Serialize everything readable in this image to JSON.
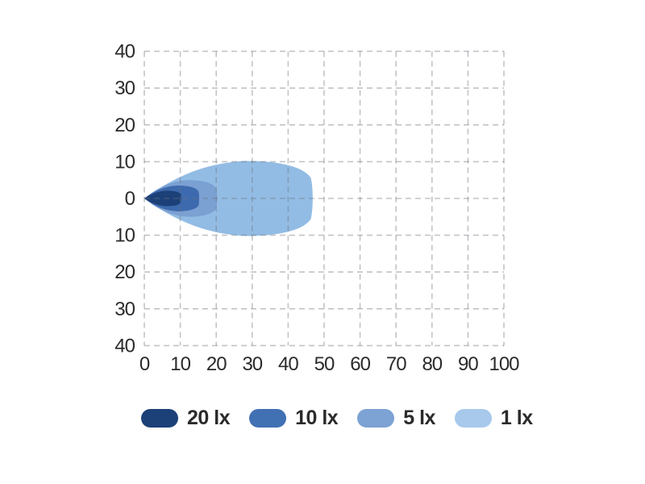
{
  "chart_data": {
    "type": "area",
    "subtype": "isolux-beam-pattern",
    "title": "",
    "x_axis": {
      "tick_labels": [
        "0",
        "10",
        "20",
        "30",
        "40",
        "50",
        "60",
        "70",
        "80",
        "90",
        "100"
      ],
      "tick_values": [
        0,
        10,
        20,
        30,
        40,
        50,
        60,
        70,
        80,
        90,
        100
      ],
      "range": [
        0,
        100
      ]
    },
    "y_axis": {
      "tick_labels": [
        "40",
        "30",
        "20",
        "10",
        "0",
        "10",
        "20",
        "30",
        "40"
      ],
      "tick_values": [
        40,
        30,
        20,
        10,
        0,
        -10,
        -20,
        -30,
        -40
      ],
      "range": [
        -40,
        40
      ]
    },
    "grid": {
      "shown": true,
      "style": "dashed",
      "color": "#c9c9c9"
    },
    "legend_position": "bottom",
    "series": [
      {
        "name": "20 lx",
        "lux": 20,
        "color": "#1c4078",
        "legend_color": "#1c4078",
        "beam_reach": 10.3,
        "beam_half_width": 2.1,
        "origin_x": 0,
        "origin_y": 0
      },
      {
        "name": "10 lx",
        "lux": 10,
        "color": "#3d6aae",
        "legend_color": "#4170b3",
        "beam_reach": 15.3,
        "beam_half_width": 3.5,
        "origin_x": 0,
        "origin_y": 0
      },
      {
        "name": "5 lx",
        "lux": 5,
        "color": "#7ba0d2",
        "legend_color": "#7da2d4",
        "beam_reach": 20.3,
        "beam_half_width": 5.0,
        "origin_x": 0,
        "origin_y": 0
      },
      {
        "name": "1 lx",
        "lux": 1,
        "color": "#92bce4",
        "legend_color": "#a8c9ec",
        "beam_reach": 47.0,
        "beam_half_width": 10.2,
        "origin_x": 0,
        "origin_y": 0
      }
    ]
  }
}
